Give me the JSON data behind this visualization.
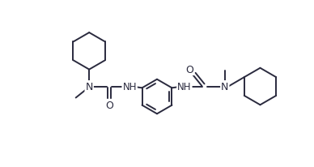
{
  "background_color": "#ffffff",
  "line_color": "#2a2a3e",
  "atom_color": "#2a2a3e",
  "figsize": [
    3.88,
    2.07
  ],
  "dpi": 100,
  "lw": 1.4,
  "r_cyc": 0.62,
  "r_benz": 0.58,
  "xlim": [
    0,
    10.5
  ],
  "ylim": [
    0,
    5.6
  ]
}
